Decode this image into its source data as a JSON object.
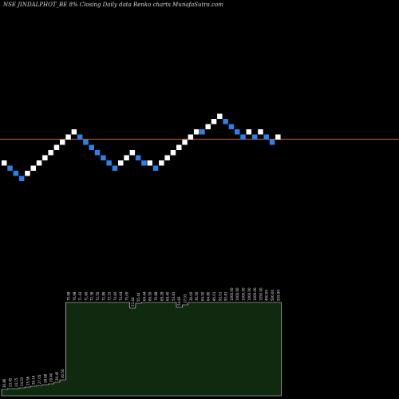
{
  "chart_data": {
    "type": "renko",
    "title": "NSE JINDALPHOT_BE 8% Closing Daily data Renko charts MunafaSutra.com",
    "reference_price_label": "",
    "colors": {
      "background": "#000000",
      "up_brick": "#ffffff",
      "down_brick": "#2f7fe6",
      "reference_line": "#c8642c",
      "volume_fill": "#0f2a0f",
      "volume_stroke": "#e8e8e8"
    },
    "bricks": [
      {
        "dir": "up",
        "level": 2
      },
      {
        "dir": "down",
        "level": 1
      },
      {
        "dir": "down",
        "level": 0
      },
      {
        "dir": "down",
        "level": -1
      },
      {
        "dir": "up",
        "level": 0
      },
      {
        "dir": "up",
        "level": 1
      },
      {
        "dir": "up",
        "level": 2
      },
      {
        "dir": "up",
        "level": 3
      },
      {
        "dir": "up",
        "level": 4
      },
      {
        "dir": "up",
        "level": 5
      },
      {
        "dir": "up",
        "level": 6
      },
      {
        "dir": "up",
        "level": 7
      },
      {
        "dir": "up",
        "level": 8
      },
      {
        "dir": "down",
        "level": 7
      },
      {
        "dir": "down",
        "level": 6
      },
      {
        "dir": "down",
        "level": 5
      },
      {
        "dir": "down",
        "level": 4
      },
      {
        "dir": "down",
        "level": 3
      },
      {
        "dir": "down",
        "level": 2
      },
      {
        "dir": "down",
        "level": 1
      },
      {
        "dir": "up",
        "level": 2
      },
      {
        "dir": "up",
        "level": 3
      },
      {
        "dir": "up",
        "level": 4
      },
      {
        "dir": "down",
        "level": 3
      },
      {
        "dir": "down",
        "level": 2
      },
      {
        "dir": "up",
        "level": 2
      },
      {
        "dir": "down",
        "level": 1
      },
      {
        "dir": "up",
        "level": 2
      },
      {
        "dir": "up",
        "level": 3
      },
      {
        "dir": "up",
        "level": 4
      },
      {
        "dir": "up",
        "level": 5
      },
      {
        "dir": "up",
        "level": 6
      },
      {
        "dir": "up",
        "level": 7
      },
      {
        "dir": "up",
        "level": 8
      },
      {
        "dir": "down",
        "level": 8
      },
      {
        "dir": "up",
        "level": 9
      },
      {
        "dir": "up",
        "level": 10
      },
      {
        "dir": "up",
        "level": 11
      },
      {
        "dir": "down",
        "level": 10
      },
      {
        "dir": "down",
        "level": 9
      },
      {
        "dir": "down",
        "level": 8
      },
      {
        "dir": "down",
        "level": 7
      },
      {
        "dir": "up",
        "level": 8
      },
      {
        "dir": "down",
        "level": 7
      },
      {
        "dir": "up",
        "level": 8
      },
      {
        "dir": "down",
        "level": 7
      },
      {
        "dir": "down",
        "level": 6
      },
      {
        "dir": "up",
        "level": 7
      }
    ],
    "reference_level": 6.6,
    "volume": [
      8,
      9,
      9,
      10,
      11,
      12,
      13,
      14,
      15,
      17,
      20,
      117,
      117,
      117,
      117,
      117,
      117,
      117,
      117,
      117,
      117,
      117,
      110,
      116,
      117,
      117,
      117,
      117,
      117,
      117,
      111,
      114,
      117,
      117,
      117,
      117,
      117,
      117,
      117,
      117,
      117,
      117,
      117,
      117,
      117,
      117,
      117,
      117
    ],
    "volume_labels": [
      "30.86",
      "23.45",
      "24.15",
      "24.53",
      "25.56",
      "26.14",
      "27.05",
      "28.68",
      "29.40",
      "29.45",
      "30.50",
      "70.98",
      "70.98",
      "71.43",
      "71.60",
      "72.36",
      "72.55",
      "72.86",
      "73.15",
      "74.60",
      "74.64",
      "75.00",
      "53.44",
      "55.44",
      "64.44",
      "69.50",
      "70.88",
      "69.28",
      "69.40",
      "53.81",
      "54.83",
      "27.03",
      "30.00",
      "30.50",
      "64.50",
      "64.80",
      "85.01",
      "93.01",
      "93.81",
      "1000.00",
      "1000.00",
      "1000.00",
      "1000.00",
      "1000.00",
      "1050.00",
      "400.00",
      "500.00",
      "555.90"
    ]
  }
}
